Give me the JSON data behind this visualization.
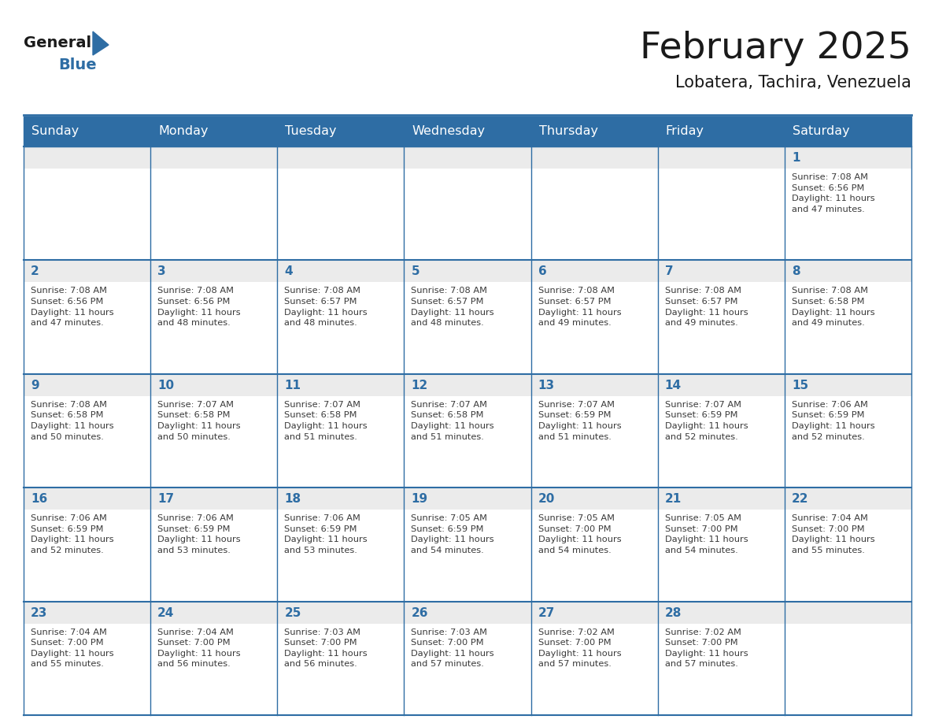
{
  "title": "February 2025",
  "subtitle": "Lobatera, Tachira, Venezuela",
  "header_bg": "#2e6da4",
  "header_text": "#ffffff",
  "cell_top_bg": "#ebebeb",
  "cell_body_bg": "#ffffff",
  "grid_line_color": "#2e6da4",
  "day_headers": [
    "Sunday",
    "Monday",
    "Tuesday",
    "Wednesday",
    "Thursday",
    "Friday",
    "Saturday"
  ],
  "logo_general_color": "#1a1a1a",
  "logo_blue_color": "#2e6da4",
  "days": [
    {
      "date": 1,
      "col": 6,
      "row": 0,
      "sunrise": "7:08 AM",
      "sunset": "6:56 PM",
      "daylight": "11 hours and 47 minutes."
    },
    {
      "date": 2,
      "col": 0,
      "row": 1,
      "sunrise": "7:08 AM",
      "sunset": "6:56 PM",
      "daylight": "11 hours and 47 minutes."
    },
    {
      "date": 3,
      "col": 1,
      "row": 1,
      "sunrise": "7:08 AM",
      "sunset": "6:56 PM",
      "daylight": "11 hours and 48 minutes."
    },
    {
      "date": 4,
      "col": 2,
      "row": 1,
      "sunrise": "7:08 AM",
      "sunset": "6:57 PM",
      "daylight": "11 hours and 48 minutes."
    },
    {
      "date": 5,
      "col": 3,
      "row": 1,
      "sunrise": "7:08 AM",
      "sunset": "6:57 PM",
      "daylight": "11 hours and 48 minutes."
    },
    {
      "date": 6,
      "col": 4,
      "row": 1,
      "sunrise": "7:08 AM",
      "sunset": "6:57 PM",
      "daylight": "11 hours and 49 minutes."
    },
    {
      "date": 7,
      "col": 5,
      "row": 1,
      "sunrise": "7:08 AM",
      "sunset": "6:57 PM",
      "daylight": "11 hours and 49 minutes."
    },
    {
      "date": 8,
      "col": 6,
      "row": 1,
      "sunrise": "7:08 AM",
      "sunset": "6:58 PM",
      "daylight": "11 hours and 49 minutes."
    },
    {
      "date": 9,
      "col": 0,
      "row": 2,
      "sunrise": "7:08 AM",
      "sunset": "6:58 PM",
      "daylight": "11 hours and 50 minutes."
    },
    {
      "date": 10,
      "col": 1,
      "row": 2,
      "sunrise": "7:07 AM",
      "sunset": "6:58 PM",
      "daylight": "11 hours and 50 minutes."
    },
    {
      "date": 11,
      "col": 2,
      "row": 2,
      "sunrise": "7:07 AM",
      "sunset": "6:58 PM",
      "daylight": "11 hours and 51 minutes."
    },
    {
      "date": 12,
      "col": 3,
      "row": 2,
      "sunrise": "7:07 AM",
      "sunset": "6:58 PM",
      "daylight": "11 hours and 51 minutes."
    },
    {
      "date": 13,
      "col": 4,
      "row": 2,
      "sunrise": "7:07 AM",
      "sunset": "6:59 PM",
      "daylight": "11 hours and 51 minutes."
    },
    {
      "date": 14,
      "col": 5,
      "row": 2,
      "sunrise": "7:07 AM",
      "sunset": "6:59 PM",
      "daylight": "11 hours and 52 minutes."
    },
    {
      "date": 15,
      "col": 6,
      "row": 2,
      "sunrise": "7:06 AM",
      "sunset": "6:59 PM",
      "daylight": "11 hours and 52 minutes."
    },
    {
      "date": 16,
      "col": 0,
      "row": 3,
      "sunrise": "7:06 AM",
      "sunset": "6:59 PM",
      "daylight": "11 hours and 52 minutes."
    },
    {
      "date": 17,
      "col": 1,
      "row": 3,
      "sunrise": "7:06 AM",
      "sunset": "6:59 PM",
      "daylight": "11 hours and 53 minutes."
    },
    {
      "date": 18,
      "col": 2,
      "row": 3,
      "sunrise": "7:06 AM",
      "sunset": "6:59 PM",
      "daylight": "11 hours and 53 minutes."
    },
    {
      "date": 19,
      "col": 3,
      "row": 3,
      "sunrise": "7:05 AM",
      "sunset": "6:59 PM",
      "daylight": "11 hours and 54 minutes."
    },
    {
      "date": 20,
      "col": 4,
      "row": 3,
      "sunrise": "7:05 AM",
      "sunset": "7:00 PM",
      "daylight": "11 hours and 54 minutes."
    },
    {
      "date": 21,
      "col": 5,
      "row": 3,
      "sunrise": "7:05 AM",
      "sunset": "7:00 PM",
      "daylight": "11 hours and 54 minutes."
    },
    {
      "date": 22,
      "col": 6,
      "row": 3,
      "sunrise": "7:04 AM",
      "sunset": "7:00 PM",
      "daylight": "11 hours and 55 minutes."
    },
    {
      "date": 23,
      "col": 0,
      "row": 4,
      "sunrise": "7:04 AM",
      "sunset": "7:00 PM",
      "daylight": "11 hours and 55 minutes."
    },
    {
      "date": 24,
      "col": 1,
      "row": 4,
      "sunrise": "7:04 AM",
      "sunset": "7:00 PM",
      "daylight": "11 hours and 56 minutes."
    },
    {
      "date": 25,
      "col": 2,
      "row": 4,
      "sunrise": "7:03 AM",
      "sunset": "7:00 PM",
      "daylight": "11 hours and 56 minutes."
    },
    {
      "date": 26,
      "col": 3,
      "row": 4,
      "sunrise": "7:03 AM",
      "sunset": "7:00 PM",
      "daylight": "11 hours and 57 minutes."
    },
    {
      "date": 27,
      "col": 4,
      "row": 4,
      "sunrise": "7:02 AM",
      "sunset": "7:00 PM",
      "daylight": "11 hours and 57 minutes."
    },
    {
      "date": 28,
      "col": 5,
      "row": 4,
      "sunrise": "7:02 AM",
      "sunset": "7:00 PM",
      "daylight": "11 hours and 57 minutes."
    }
  ]
}
